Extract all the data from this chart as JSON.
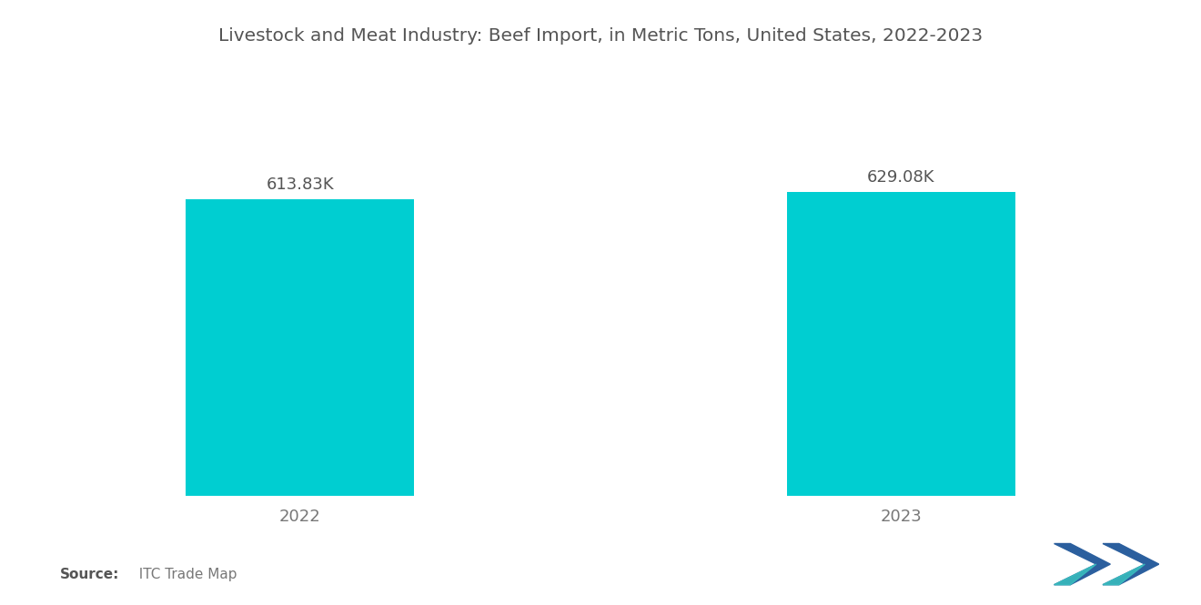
{
  "title": "Livestock and Meat Industry: Beef Import, in Metric Tons, United States, 2022-2023",
  "categories": [
    "2022",
    "2023"
  ],
  "values": [
    613830,
    629080
  ],
  "labels": [
    "613.83K",
    "629.08K"
  ],
  "bar_color": "#00CED1",
  "background_color": "#ffffff",
  "title_fontsize": 14.5,
  "label_fontsize": 13,
  "tick_fontsize": 13,
  "source_bold": "Source:",
  "source_normal": "  ITC Trade Map",
  "ylim": [
    0,
    800000
  ],
  "bar_width": 0.38
}
